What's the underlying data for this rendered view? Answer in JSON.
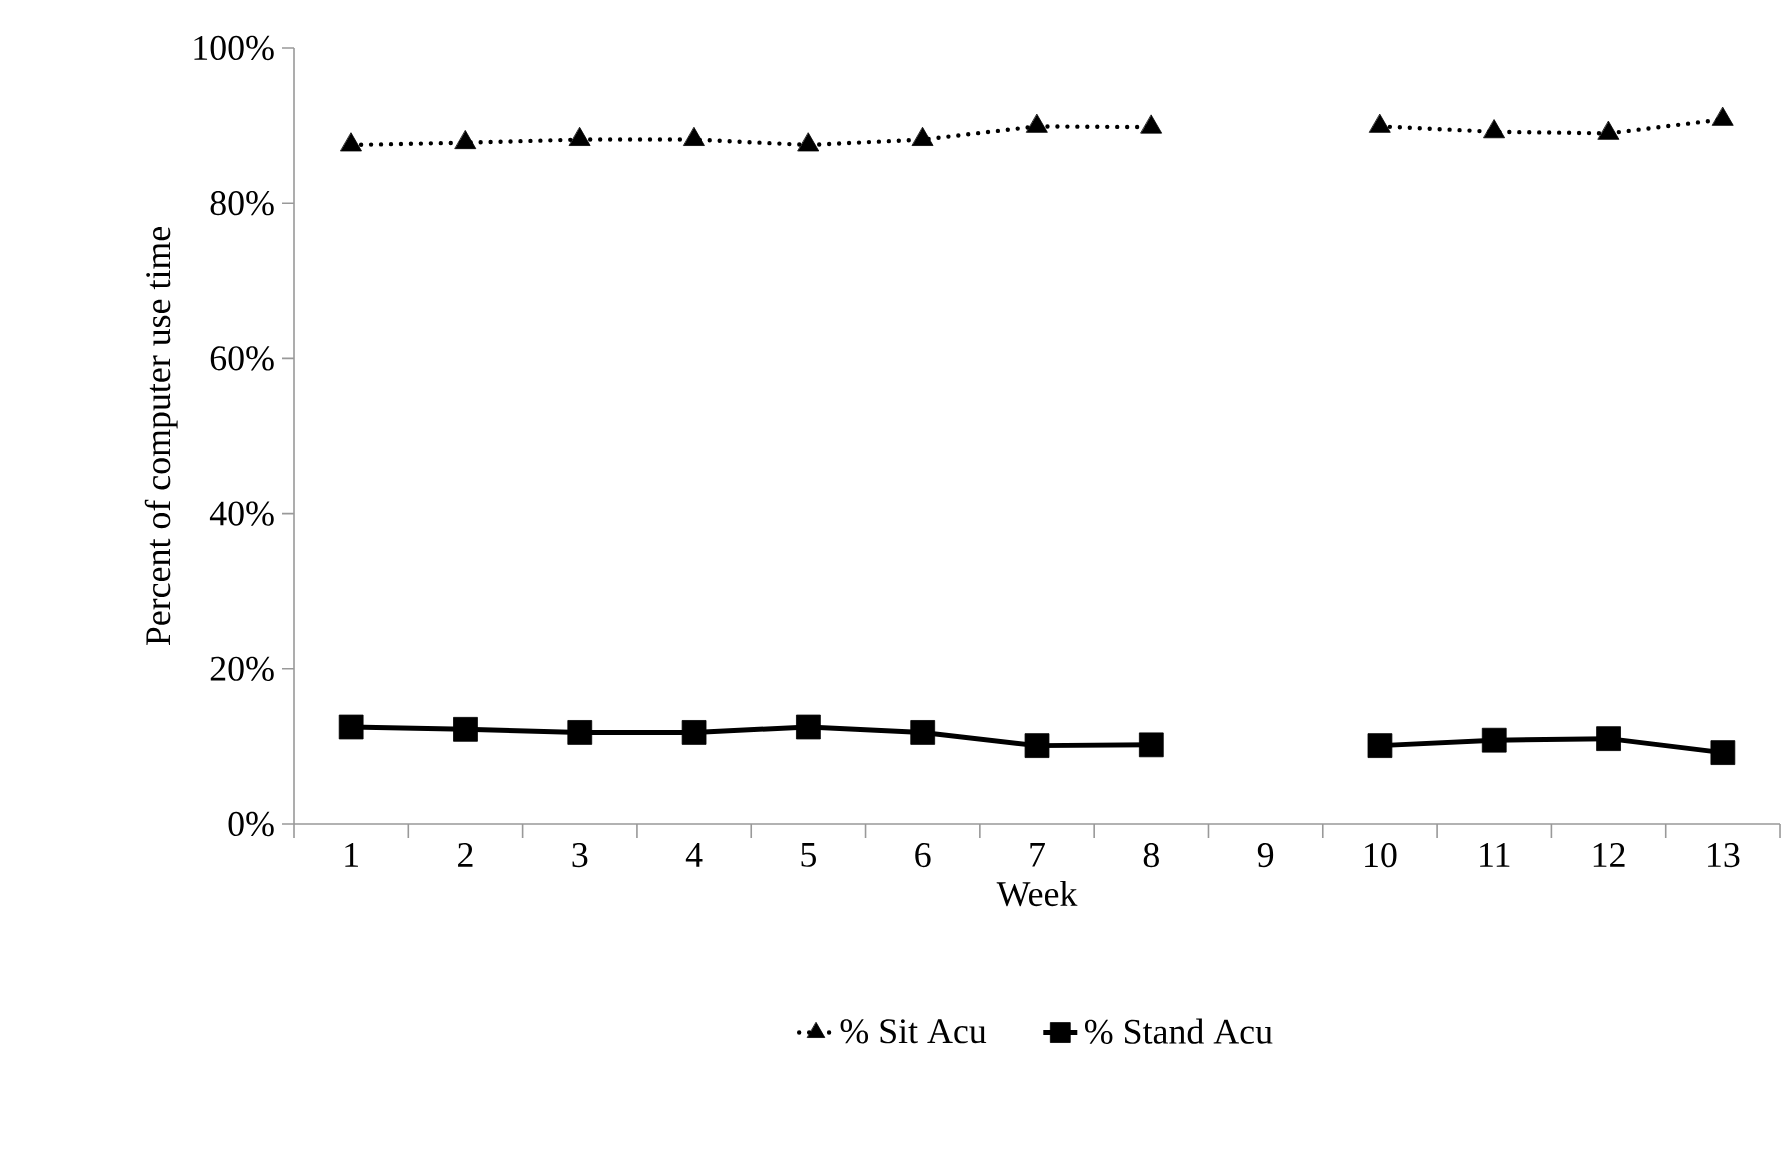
{
  "chart_data": {
    "type": "line",
    "xlabel": "Week",
    "ylabel": "Percent of computer use time",
    "categories": [
      "1",
      "2",
      "3",
      "4",
      "5",
      "6",
      "7",
      "8",
      "9",
      "10",
      "11",
      "12",
      "13"
    ],
    "series": [
      {
        "name": "% Sit Acu",
        "color": "#000000",
        "marker": "triangle",
        "line_style": "dotted",
        "values": [
          87.5,
          87.8,
          88.2,
          88.2,
          87.5,
          88.2,
          89.9,
          89.8,
          null,
          89.9,
          89.2,
          89.0,
          90.8
        ]
      },
      {
        "name": "% Stand Acu",
        "color": "#000000",
        "marker": "square",
        "line_style": "solid",
        "values": [
          12.5,
          12.2,
          11.8,
          11.8,
          12.5,
          11.8,
          10.1,
          10.2,
          null,
          10.1,
          10.8,
          11.0,
          9.2
        ]
      }
    ],
    "ylim": [
      0,
      100
    ],
    "yticks": [
      {
        "value": 0,
        "label": "0%"
      },
      {
        "value": 20,
        "label": "20%"
      },
      {
        "value": 40,
        "label": "40%"
      },
      {
        "value": 60,
        "label": "60%"
      },
      {
        "value": 80,
        "label": "80%"
      },
      {
        "value": 100,
        "label": "100%"
      }
    ],
    "legend": "bottom"
  }
}
